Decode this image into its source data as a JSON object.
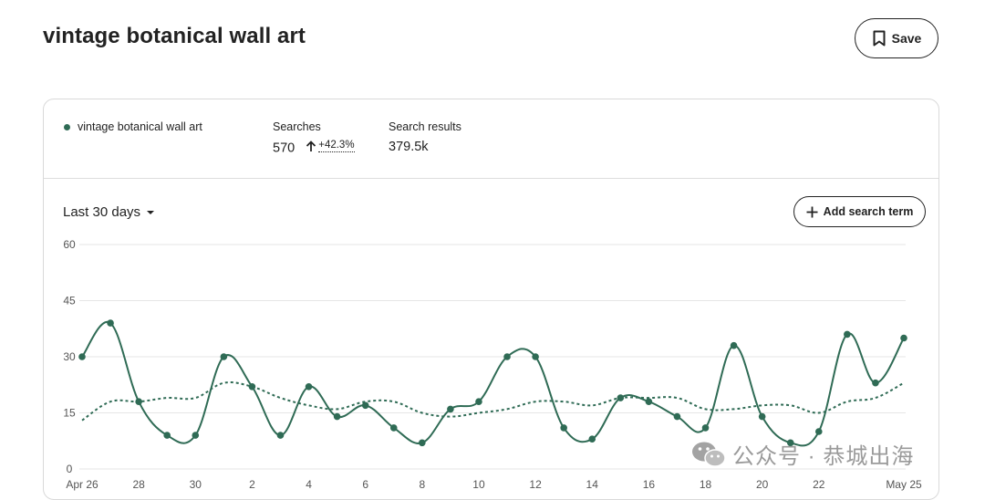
{
  "header": {
    "title": "vintage botanical wall art",
    "save_label": "Save"
  },
  "summary": {
    "term": "vintage botanical wall art",
    "term_color": "#2f6b55",
    "searches_label": "Searches",
    "searches_value": "570",
    "searches_change": "+42.3%",
    "results_label": "Search results",
    "results_value": "379.5k"
  },
  "controls": {
    "range_label": "Last 30 days",
    "add_term_label": "Add search term"
  },
  "watermark": {
    "text": "公众号 · 恭城出海"
  },
  "chart_data": {
    "type": "line",
    "ylim": [
      0,
      60
    ],
    "yticks": [
      0,
      15,
      30,
      45,
      60
    ],
    "x": [
      "Apr 26",
      "27",
      "28",
      "29",
      "30",
      "1",
      "2",
      "3",
      "4",
      "5",
      "6",
      "7",
      "8",
      "9",
      "10",
      "11",
      "12",
      "13",
      "14",
      "15",
      "16",
      "17",
      "18",
      "19",
      "20",
      "21",
      "22",
      "23",
      "24",
      "May 25"
    ],
    "xtick_labels": [
      "Apr 26",
      "28",
      "30",
      "2",
      "4",
      "6",
      "8",
      "10",
      "12",
      "14",
      "16",
      "18",
      "20",
      "22",
      "May 25"
    ],
    "series": [
      {
        "style": "solid",
        "color": "#2f6b55",
        "values": [
          30,
          39,
          18,
          9,
          9,
          30,
          22,
          9,
          22,
          14,
          17,
          11,
          7,
          16,
          18,
          30,
          30,
          11,
          8,
          19,
          18,
          14,
          11,
          33,
          14,
          7,
          10,
          36,
          23,
          35
        ]
      },
      {
        "style": "dotted",
        "color": "#2f6b55",
        "values": [
          13,
          18,
          18,
          19,
          19,
          23,
          22,
          19,
          17,
          16,
          18,
          18,
          15,
          14,
          15,
          16,
          18,
          18,
          17,
          19,
          19,
          19,
          16,
          16,
          17,
          17,
          15,
          18,
          19,
          23
        ]
      }
    ],
    "grid": true
  }
}
